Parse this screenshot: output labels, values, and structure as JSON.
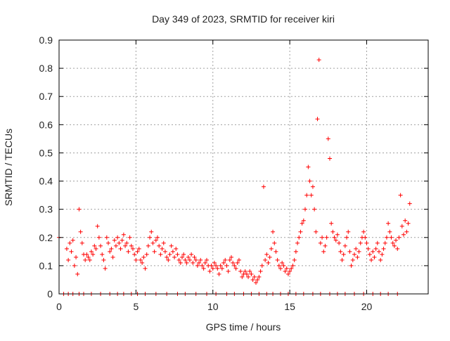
{
  "chart_data": {
    "type": "scatter",
    "title": "Day 349 of 2023, SRMTID for receiver kiri",
    "xlabel": "GPS time / hours",
    "ylabel": "SRMTID / TECUs",
    "xlim": [
      0,
      24
    ],
    "ylim": [
      0,
      0.9
    ],
    "xticks": [
      0,
      5,
      10,
      15,
      20
    ],
    "xtick_labels": [
      "0",
      "5",
      "10",
      "15",
      "20"
    ],
    "yticks": [
      0,
      0.1,
      0.2,
      0.3,
      0.4,
      0.5,
      0.6,
      0.7,
      0.8,
      0.9
    ],
    "ytick_labels": [
      "0",
      "0.1",
      "0.2",
      "0.3",
      "0.4",
      "0.5",
      "0.6",
      "0.7",
      "0.8",
      "0.9"
    ],
    "grid": true,
    "marker": "plus",
    "color": "#ff0000",
    "series": [
      {
        "name": "SRMTID",
        "x": [
          0.0,
          0.5,
          0.6,
          0.7,
          0.8,
          0.9,
          1.0,
          1.1,
          1.2,
          1.3,
          1.4,
          1.5,
          1.6,
          1.7,
          1.8,
          1.9,
          2.0,
          2.1,
          2.2,
          2.3,
          2.4,
          2.5,
          2.6,
          2.7,
          2.8,
          2.9,
          3.0,
          3.1,
          3.2,
          3.3,
          3.4,
          3.5,
          3.6,
          3.7,
          3.8,
          3.9,
          4.0,
          4.1,
          4.2,
          4.3,
          4.4,
          4.5,
          4.6,
          4.7,
          4.8,
          4.9,
          5.0,
          5.1,
          5.2,
          5.3,
          5.4,
          5.5,
          5.6,
          5.7,
          5.8,
          5.9,
          6.0,
          6.1,
          6.2,
          6.3,
          6.4,
          6.5,
          6.6,
          6.7,
          6.8,
          6.9,
          7.0,
          7.1,
          7.2,
          7.3,
          7.4,
          7.5,
          7.6,
          7.7,
          7.8,
          7.9,
          8.0,
          8.1,
          8.2,
          8.3,
          8.4,
          8.5,
          8.6,
          8.7,
          8.8,
          8.9,
          9.0,
          9.1,
          9.2,
          9.3,
          9.4,
          9.5,
          9.6,
          9.7,
          9.8,
          9.9,
          10.0,
          10.1,
          10.2,
          10.3,
          10.4,
          10.5,
          10.6,
          10.7,
          10.8,
          10.9,
          11.0,
          11.1,
          11.2,
          11.3,
          11.4,
          11.5,
          11.6,
          11.7,
          11.8,
          11.9,
          12.0,
          12.1,
          12.2,
          12.3,
          12.4,
          12.5,
          12.6,
          12.7,
          12.8,
          12.9,
          13.0,
          13.1,
          13.2,
          13.3,
          13.4,
          13.5,
          13.6,
          13.7,
          13.8,
          13.9,
          14.0,
          14.1,
          14.2,
          14.3,
          14.4,
          14.5,
          14.6,
          14.7,
          14.8,
          14.9,
          15.0,
          15.1,
          15.2,
          15.3,
          15.4,
          15.5,
          15.6,
          15.7,
          15.8,
          15.9,
          16.0,
          16.1,
          16.2,
          16.3,
          16.4,
          16.5,
          16.6,
          16.7,
          16.8,
          16.9,
          17.0,
          17.1,
          17.2,
          17.3,
          17.4,
          17.5,
          17.6,
          17.7,
          17.8,
          17.9,
          18.0,
          18.1,
          18.2,
          18.3,
          18.4,
          18.5,
          18.6,
          18.7,
          18.8,
          18.9,
          19.0,
          19.1,
          19.2,
          19.3,
          19.4,
          19.5,
          19.6,
          19.7,
          19.8,
          19.9,
          20.0,
          20.1,
          20.2,
          20.3,
          20.4,
          20.5,
          20.6,
          20.7,
          20.8,
          20.9,
          21.0,
          21.1,
          21.2,
          21.3,
          21.4,
          21.5,
          21.6,
          21.7,
          21.8,
          21.9,
          22.0,
          22.1,
          22.2,
          22.3,
          22.4,
          22.5,
          22.6,
          22.7,
          22.8
        ],
        "y": [
          0.2,
          0.16,
          0.12,
          0.18,
          0.15,
          0.19,
          0.1,
          0.13,
          0.07,
          0.3,
          0.22,
          0.18,
          0.14,
          0.12,
          0.14,
          0.13,
          0.12,
          0.15,
          0.14,
          0.17,
          0.16,
          0.24,
          0.2,
          0.17,
          0.14,
          0.12,
          0.09,
          0.2,
          0.18,
          0.15,
          0.16,
          0.13,
          0.19,
          0.17,
          0.2,
          0.18,
          0.16,
          0.19,
          0.21,
          0.17,
          0.18,
          0.15,
          0.2,
          0.17,
          0.16,
          0.14,
          0.12,
          0.15,
          0.16,
          0.12,
          0.11,
          0.13,
          0.09,
          0.14,
          0.17,
          0.2,
          0.22,
          0.18,
          0.15,
          0.19,
          0.2,
          0.17,
          0.14,
          0.16,
          0.18,
          0.15,
          0.13,
          0.12,
          0.14,
          0.17,
          0.15,
          0.13,
          0.16,
          0.14,
          0.12,
          0.11,
          0.13,
          0.14,
          0.12,
          0.11,
          0.13,
          0.12,
          0.14,
          0.11,
          0.13,
          0.12,
          0.1,
          0.11,
          0.12,
          0.1,
          0.09,
          0.11,
          0.12,
          0.1,
          0.08,
          0.1,
          0.09,
          0.11,
          0.1,
          0.09,
          0.07,
          0.1,
          0.09,
          0.11,
          0.12,
          0.1,
          0.08,
          0.12,
          0.13,
          0.11,
          0.1,
          0.09,
          0.11,
          0.12,
          0.08,
          0.06,
          0.07,
          0.08,
          0.07,
          0.06,
          0.08,
          0.07,
          0.05,
          0.06,
          0.04,
          0.05,
          0.06,
          0.08,
          0.1,
          0.38,
          0.12,
          0.14,
          0.11,
          0.13,
          0.16,
          0.22,
          0.18,
          0.15,
          0.12,
          0.1,
          0.09,
          0.11,
          0.1,
          0.08,
          0.09,
          0.07,
          0.08,
          0.09,
          0.1,
          0.12,
          0.15,
          0.18,
          0.2,
          0.22,
          0.25,
          0.26,
          0.3,
          0.35,
          0.45,
          0.4,
          0.35,
          0.38,
          0.3,
          0.22,
          0.62,
          0.83,
          0.18,
          0.2,
          0.15,
          0.17,
          0.2,
          0.55,
          0.48,
          0.25,
          0.22,
          0.2,
          0.19,
          0.21,
          0.18,
          0.15,
          0.12,
          0.14,
          0.17,
          0.2,
          0.22,
          0.15,
          0.1,
          0.12,
          0.14,
          0.16,
          0.13,
          0.15,
          0.18,
          0.2,
          0.22,
          0.2,
          0.18,
          0.16,
          0.14,
          0.12,
          0.15,
          0.13,
          0.16,
          0.18,
          0.15,
          0.12,
          0.14,
          0.16,
          0.18,
          0.2,
          0.25,
          0.22,
          0.2,
          0.18,
          0.17,
          0.19,
          0.16,
          0.2,
          0.35,
          0.24,
          0.21,
          0.26,
          0.22,
          0.25,
          0.32
        ]
      }
    ],
    "baseline_points_x": [
      0.3,
      0.6,
      0.9,
      1.3,
      1.6,
      2.1,
      2.7,
      3.3,
      3.8,
      4.2,
      4.7,
      5.1,
      5.6,
      6.3,
      7.0,
      7.7,
      8.2,
      8.9,
      9.6,
      10.2,
      10.9,
      11.4,
      12.0,
      12.5,
      13.0,
      13.5,
      13.9,
      14.4,
      14.9,
      15.4,
      15.9,
      16.5,
      17.0,
      17.6,
      18.1,
      18.6,
      19.2,
      19.8,
      20.4,
      20.9,
      21.4,
      22.0
    ]
  }
}
